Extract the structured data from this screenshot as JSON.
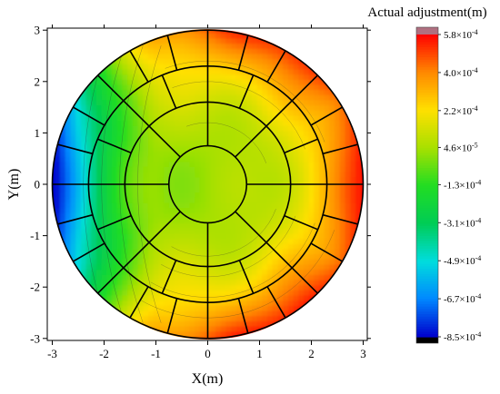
{
  "chart_data": {
    "type": "heatmap",
    "subtype": "filled-contour on circular segmented mirror",
    "xlabel": "X(m)",
    "ylabel": "Y(m)",
    "xlim": [
      -3.05,
      3.05
    ],
    "ylim": [
      -3.05,
      3.05
    ],
    "xticks": [
      -3,
      -2,
      -1,
      0,
      1,
      2,
      3
    ],
    "yticks": [
      -3,
      -2,
      -1,
      0,
      1,
      2,
      3
    ],
    "xtick_labels": [
      "-3",
      "-2",
      "-1",
      "0",
      "1",
      "2",
      "3"
    ],
    "ytick_labels": [
      "-3",
      "-2",
      "-1",
      "0",
      "1",
      "2",
      "3"
    ],
    "aperture_radius": 3.0,
    "ring_radii": [
      0.75,
      1.6,
      2.3,
      3.0
    ],
    "sector_counts": [
      8,
      16,
      24
    ],
    "colorbar": {
      "title": "Actual adjustment(m)",
      "min": -0.00085,
      "max": 0.00058,
      "levels": [
        0.00058,
        0.0004,
        0.00022,
        4.6e-05,
        -0.00013,
        -0.00031,
        -0.00049,
        -0.00067,
        -0.00085
      ],
      "labels": [
        {
          "mant": "5.8",
          "exp": "-4"
        },
        {
          "mant": "4.0",
          "exp": "-4"
        },
        {
          "mant": "2.2",
          "exp": "-4"
        },
        {
          "mant": "4.6",
          "exp": "-5"
        },
        {
          "mant": "-1.3",
          "exp": "-4"
        },
        {
          "mant": "-3.1",
          "exp": "-4"
        },
        {
          "mant": "-4.9",
          "exp": "-4"
        },
        {
          "mant": "-6.7",
          "exp": "-4"
        },
        {
          "mant": "-8.5",
          "exp": "-4"
        }
      ],
      "colors_top_to_bottom": [
        "#ff0000",
        "#ff8800",
        "#ffe000",
        "#a8e000",
        "#22dd22",
        "#00cc55",
        "#00dddd",
        "#0088ff",
        "#0000cc"
      ],
      "overflow_color": "#b07080",
      "underflow_color": "#000000"
    },
    "field_description": "adjustment increases toward upper-right and lower-right rims (red), decreases toward left rim (blue), near zero (green) in center"
  }
}
